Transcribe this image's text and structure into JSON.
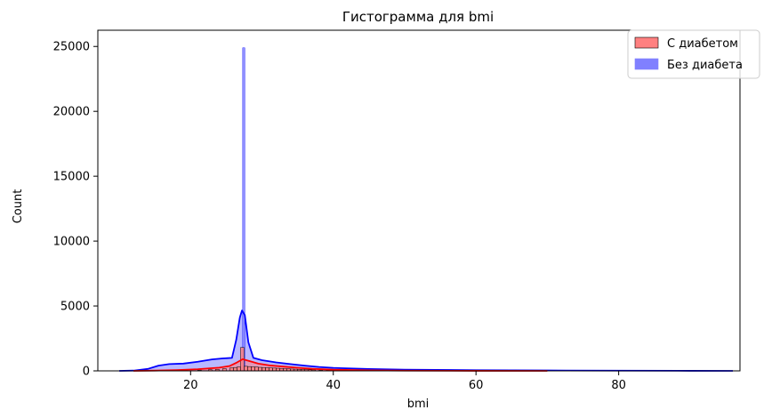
{
  "chart_data": {
    "type": "histogram",
    "title": "Гистограмма для bmi",
    "xlabel": "bmi",
    "ylabel": "Count",
    "xlim": [
      7,
      97
    ],
    "ylim": [
      0,
      26250
    ],
    "x_ticks": [
      20,
      40,
      60,
      80
    ],
    "y_ticks": [
      0,
      5000,
      10000,
      15000,
      20000,
      25000
    ],
    "grid": false,
    "legend_position": "top-right",
    "series": [
      {
        "name": "С диабетом",
        "color": "#ff0000",
        "fill_color": "#ff8080",
        "bin_width": 0.5,
        "bins": [
          {
            "x": 15.0,
            "count": 5
          },
          {
            "x": 17.0,
            "count": 15
          },
          {
            "x": 19.0,
            "count": 30
          },
          {
            "x": 21.0,
            "count": 60
          },
          {
            "x": 22.5,
            "count": 90
          },
          {
            "x": 23.5,
            "count": 120
          },
          {
            "x": 24.5,
            "count": 170
          },
          {
            "x": 25.5,
            "count": 220
          },
          {
            "x": 26.0,
            "count": 260
          },
          {
            "x": 26.5,
            "count": 300
          },
          {
            "x": 27.0,
            "count": 1800
          },
          {
            "x": 27.5,
            "count": 350
          },
          {
            "x": 28.0,
            "count": 330
          },
          {
            "x": 28.5,
            "count": 310
          },
          {
            "x": 29.0,
            "count": 290
          },
          {
            "x": 29.5,
            "count": 270
          },
          {
            "x": 30.0,
            "count": 260
          },
          {
            "x": 30.5,
            "count": 240
          },
          {
            "x": 31.0,
            "count": 230
          },
          {
            "x": 31.5,
            "count": 215
          },
          {
            "x": 32.0,
            "count": 200
          },
          {
            "x": 32.5,
            "count": 185
          },
          {
            "x": 33.0,
            "count": 170
          },
          {
            "x": 33.5,
            "count": 155
          },
          {
            "x": 34.0,
            "count": 140
          },
          {
            "x": 34.5,
            "count": 130
          },
          {
            "x": 35.0,
            "count": 120
          },
          {
            "x": 35.5,
            "count": 105
          },
          {
            "x": 36.0,
            "count": 95
          },
          {
            "x": 36.5,
            "count": 85
          },
          {
            "x": 37.0,
            "count": 75
          },
          {
            "x": 38.0,
            "count": 60
          },
          {
            "x": 39.0,
            "count": 45
          },
          {
            "x": 41.0,
            "count": 30
          },
          {
            "x": 44.0,
            "count": 15
          },
          {
            "x": 50.0,
            "count": 5
          }
        ],
        "kde": [
          [
            12,
            0
          ],
          [
            15,
            20
          ],
          [
            18,
            60
          ],
          [
            21,
            130
          ],
          [
            24,
            250
          ],
          [
            25.5,
            380
          ],
          [
            26.5,
            650
          ],
          [
            27.3,
            900
          ],
          [
            28.2,
            760
          ],
          [
            29.5,
            560
          ],
          [
            31,
            430
          ],
          [
            33,
            330
          ],
          [
            35,
            240
          ],
          [
            37,
            160
          ],
          [
            40,
            90
          ],
          [
            45,
            40
          ],
          [
            50,
            15
          ],
          [
            60,
            5
          ],
          [
            70,
            0
          ]
        ]
      },
      {
        "name": "Без диабета",
        "color": "#0000ff",
        "fill_color": "#8080ff",
        "bin_width": 0.3,
        "bins": [
          {
            "x": 27.3,
            "count": 24900
          }
        ],
        "kde": [
          [
            10,
            0
          ],
          [
            12,
            20
          ],
          [
            14,
            150
          ],
          [
            15.5,
            400
          ],
          [
            17,
            520
          ],
          [
            19,
            560
          ],
          [
            21,
            700
          ],
          [
            23,
            880
          ],
          [
            24.5,
            960
          ],
          [
            25.8,
            1000
          ],
          [
            26.4,
            2400
          ],
          [
            26.9,
            4100
          ],
          [
            27.2,
            4650
          ],
          [
            27.6,
            4300
          ],
          [
            28.1,
            2200
          ],
          [
            28.8,
            1000
          ],
          [
            30,
            820
          ],
          [
            32,
            650
          ],
          [
            34,
            520
          ],
          [
            36,
            400
          ],
          [
            38,
            300
          ],
          [
            40,
            230
          ],
          [
            45,
            140
          ],
          [
            50,
            90
          ],
          [
            60,
            50
          ],
          [
            70,
            30
          ],
          [
            80,
            15
          ],
          [
            90,
            5
          ],
          [
            96,
            0
          ]
        ]
      }
    ]
  }
}
